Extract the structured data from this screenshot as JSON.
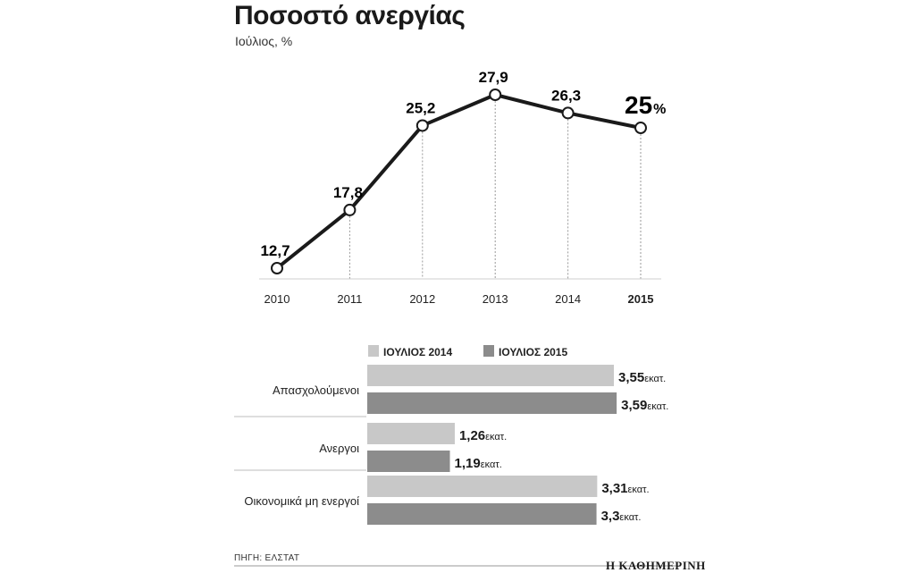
{
  "header": {
    "title": "Ποσοστό ανεργίας",
    "subtitle": "Ιούλιος, %"
  },
  "chart_data": [
    {
      "type": "line",
      "x": [
        "2010",
        "2011",
        "2012",
        "2013",
        "2014",
        "2015"
      ],
      "values": [
        12.7,
        17.8,
        25.2,
        27.9,
        26.3,
        25
      ],
      "labels": [
        "12,7",
        "17,8",
        "25,2",
        "27,9",
        "26,3",
        "25"
      ],
      "highlight_suffix": "%",
      "title": "Ποσοστό ανεργίας",
      "subtitle": "Ιούλιος, %",
      "ylim": [
        10,
        30
      ],
      "grid": "vertical dotted drop lines",
      "colors": {
        "line": "#1a1a1a",
        "marker_fill": "#ffffff"
      }
    },
    {
      "type": "bar",
      "orientation": "horizontal",
      "categories": [
        "Απασχολούμενοι",
        "Ανεργοι",
        "Οικονομικά μη ενεργοί"
      ],
      "series": [
        {
          "name": "ΙΟΥΛΙΟΣ 2014",
          "values": [
            3.55,
            1.26,
            3.31
          ],
          "labels": [
            "3,55",
            "1,26",
            "3,31"
          ],
          "color": "#c8c8c8"
        },
        {
          "name": "ΙΟΥΛΙΟΣ 2015",
          "values": [
            3.59,
            1.19,
            3.3
          ],
          "labels": [
            "3,59",
            "1,19",
            "3,3"
          ],
          "color": "#8c8c8c"
        }
      ],
      "unit": "εκατ.",
      "legend": "top"
    }
  ],
  "footer": {
    "source": "ΠΗΓΗ: ΕΛΣΤΑΤ",
    "publisher": "Η ΚΑΘΗΜΕΡΙΝΗ"
  }
}
